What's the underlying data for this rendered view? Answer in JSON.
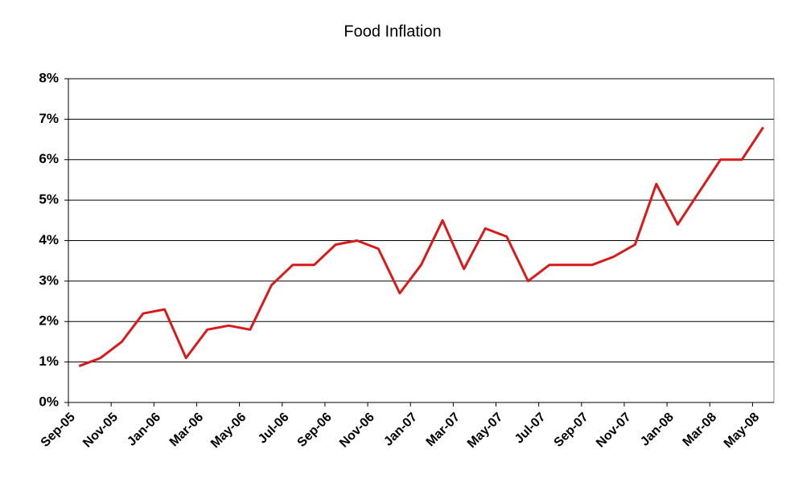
{
  "chart_data": {
    "type": "line",
    "title": "Food Inflation",
    "categories": [
      "Sep-05",
      null,
      "Nov-05",
      null,
      "Jan-06",
      null,
      "Mar-06",
      null,
      "May-06",
      null,
      "Jul-06",
      null,
      "Sep-06",
      null,
      "Nov-06",
      null,
      "Jan-07",
      null,
      "Mar-07",
      null,
      "May-07",
      null,
      "Jul-07",
      null,
      "Sep-07",
      null,
      "Nov-07",
      null,
      "Jan-08",
      null,
      "Mar-08",
      null,
      "May-08"
    ],
    "series": [
      {
        "name": "Food Inflation",
        "color": "#d81a1a",
        "values": [
          0.9,
          1.1,
          1.5,
          2.2,
          2.3,
          1.1,
          1.8,
          1.9,
          1.8,
          2.9,
          3.4,
          3.4,
          3.9,
          4.0,
          3.8,
          2.7,
          3.4,
          4.5,
          3.3,
          4.3,
          4.1,
          3.0,
          3.4,
          3.4,
          3.4,
          3.6,
          3.9,
          5.4,
          4.4,
          5.2,
          6.0,
          6.0,
          6.8
        ]
      }
    ],
    "ylim": [
      0,
      8
    ],
    "yticks": [
      {
        "value": 0,
        "label": "0%"
      },
      {
        "value": 1,
        "label": "1%"
      },
      {
        "value": 2,
        "label": "2%"
      },
      {
        "value": 3,
        "label": "3%"
      },
      {
        "value": 4,
        "label": "4%"
      },
      {
        "value": 5,
        "label": "5%"
      },
      {
        "value": 6,
        "label": "6%"
      },
      {
        "value": 7,
        "label": "7%"
      },
      {
        "value": 8,
        "label": "8%"
      }
    ],
    "grid": true
  }
}
